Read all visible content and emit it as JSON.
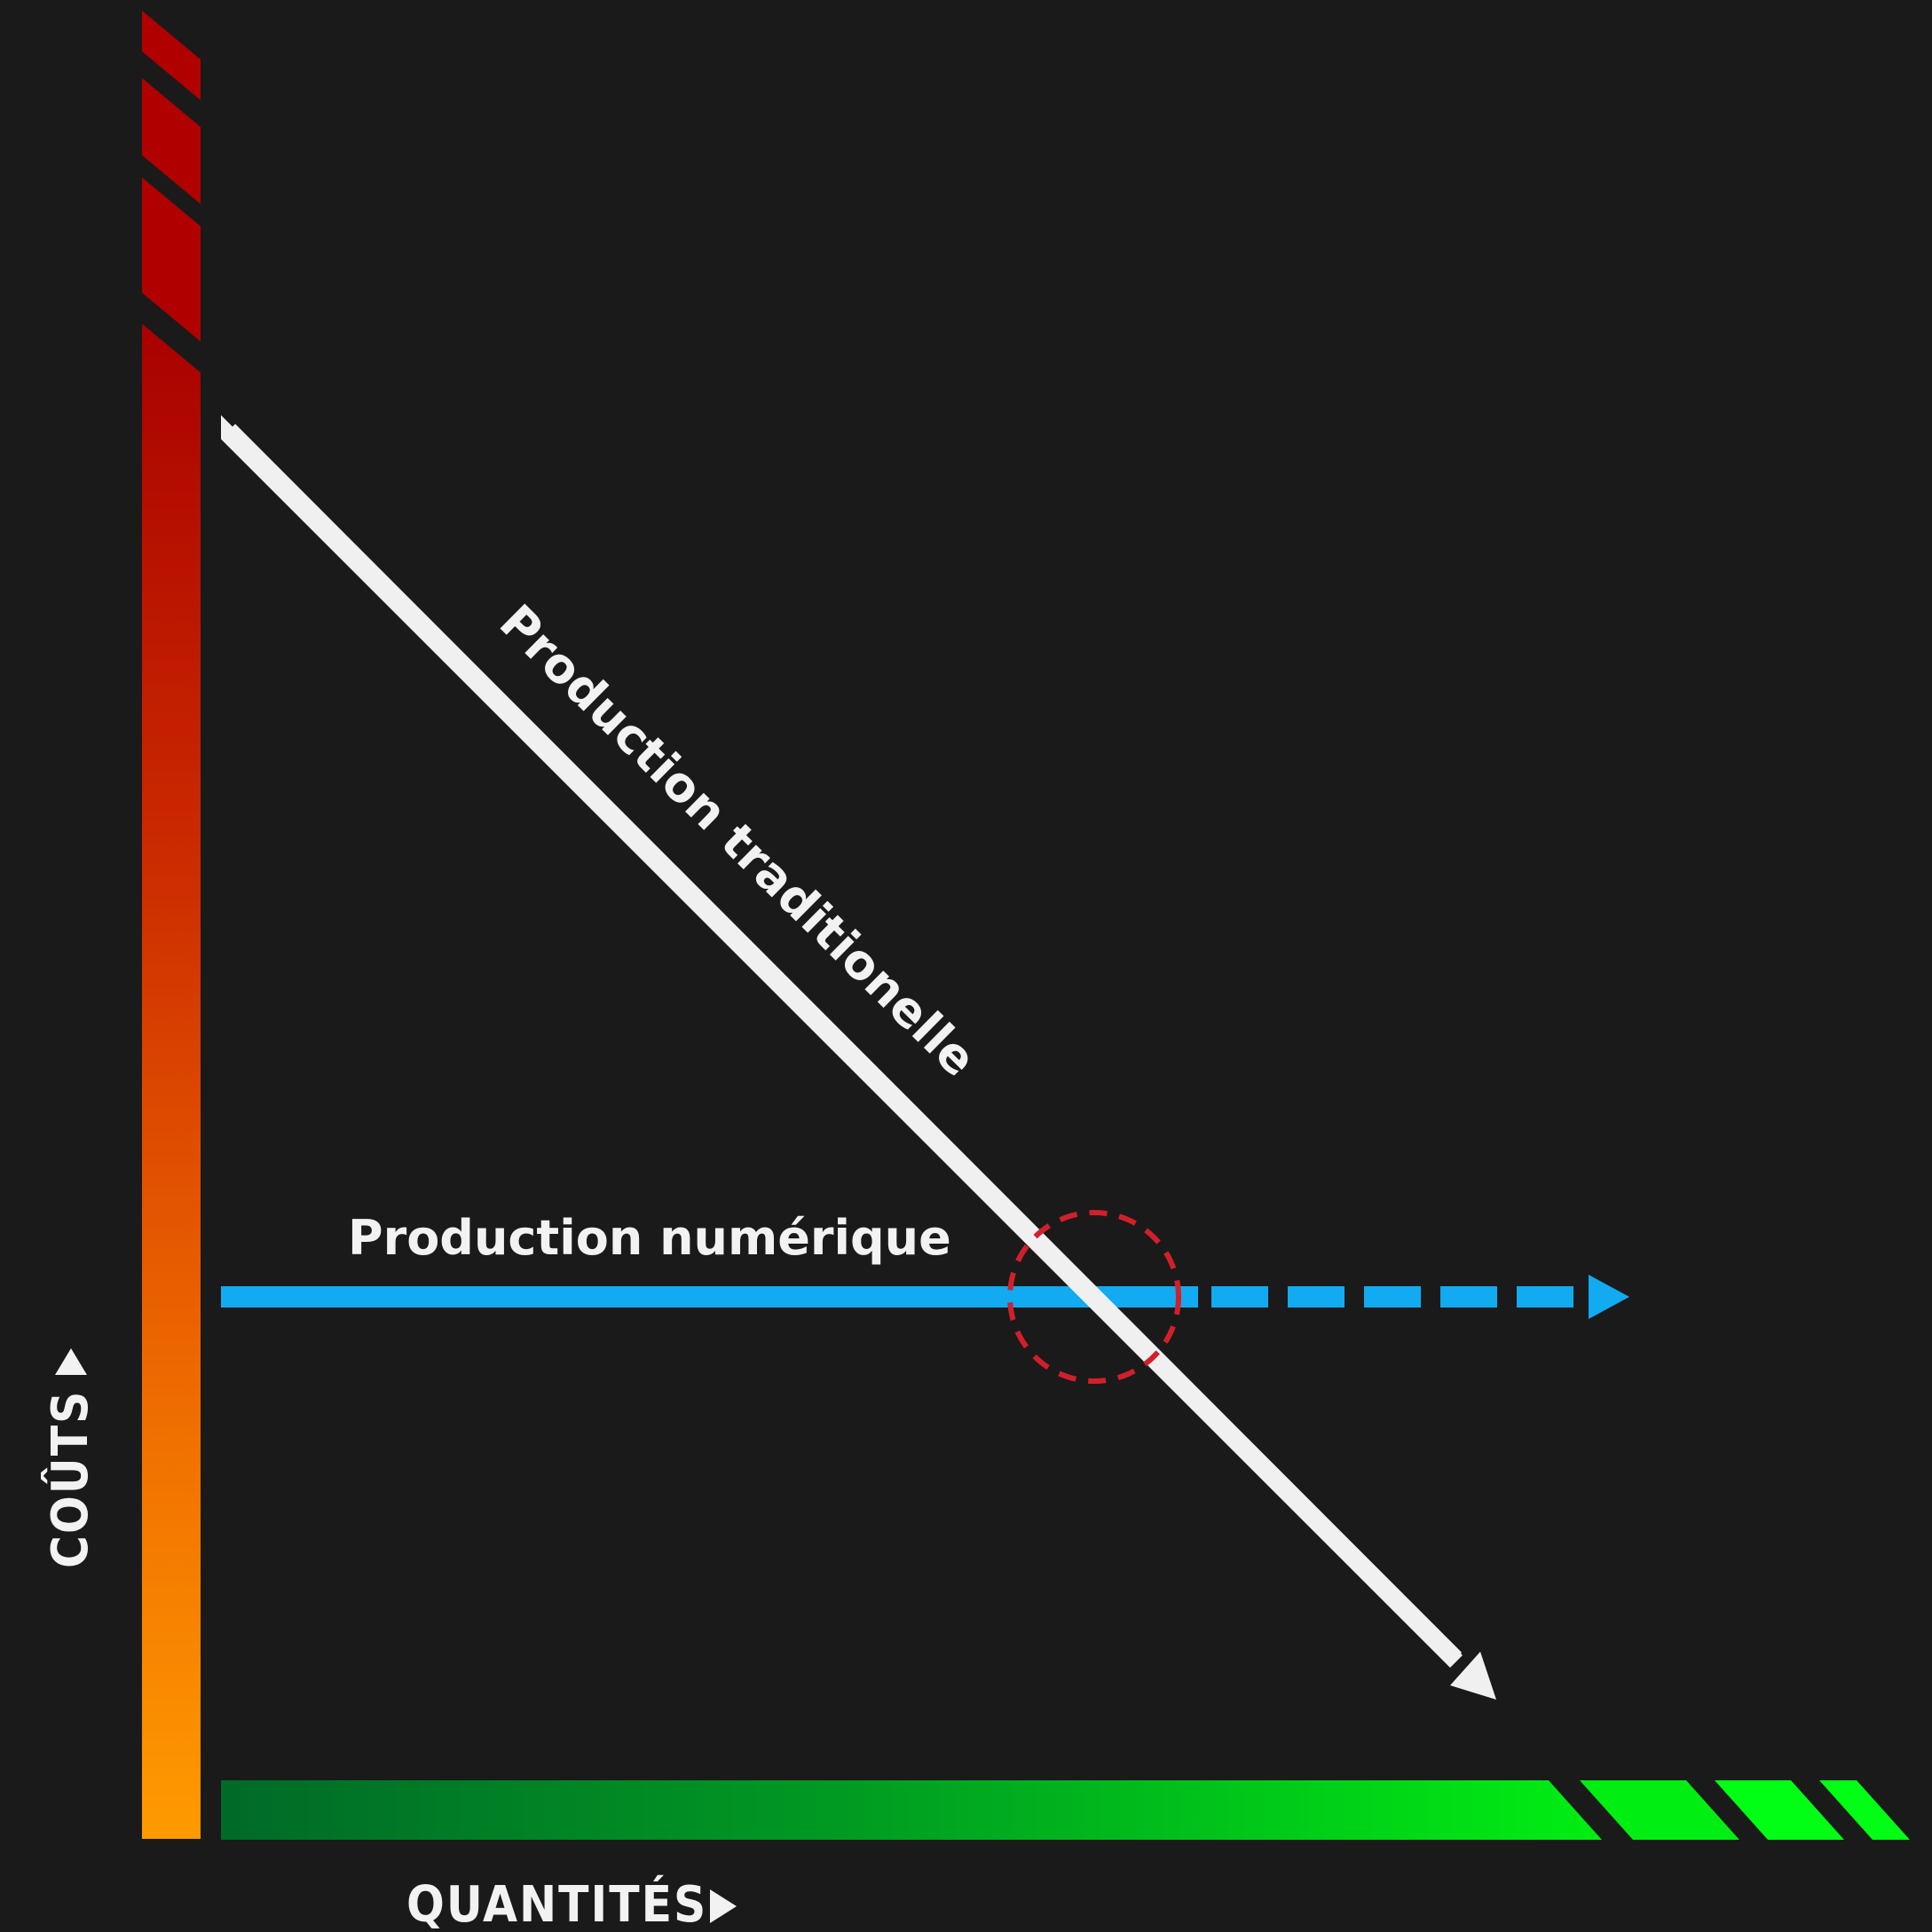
{
  "diagram": {
    "x_axis_label": "QUANTITÉS",
    "y_axis_label": "COÛTS",
    "traditional_label": "Production traditionelle",
    "digital_label": "Production numérique"
  },
  "colors": {
    "background": "#1a1a1a",
    "cost_axis_top": "#b30000",
    "cost_axis_bottom": "#ff9900",
    "quantity_axis_left": "#00702a",
    "quantity_axis_right": "#00ff11",
    "traditional_line": "#f2f2f2",
    "digital_line": "#12aaf0",
    "intersection_marker": "#d0202a"
  },
  "icons": {
    "x_axis_arrow": "triangle-right-icon",
    "y_axis_arrow": "triangle-up-icon"
  }
}
